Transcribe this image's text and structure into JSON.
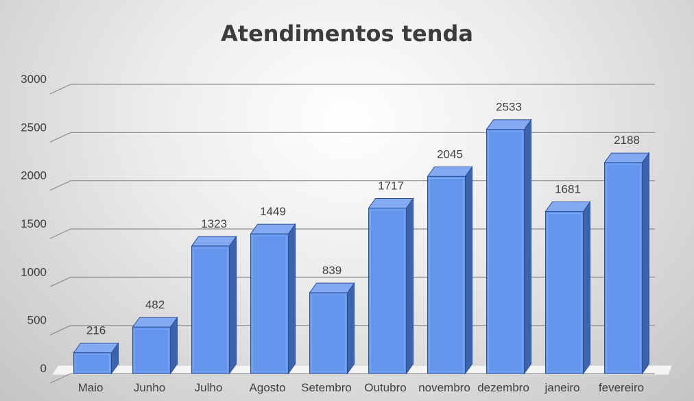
{
  "chart_data": {
    "type": "bar",
    "title": "Atendimentos tenda",
    "xlabel": "",
    "ylabel": "",
    "categories": [
      "Maio",
      "Junho",
      "Julho",
      "Agosto",
      "Setembro",
      "Outubro",
      "novembro",
      "dezembro",
      "janeiro",
      "fevereiro"
    ],
    "values": [
      216,
      482,
      1323,
      1449,
      839,
      1717,
      2045,
      2533,
      1681,
      2188
    ],
    "ylim": [
      0,
      3000
    ],
    "yticks": [
      0,
      500,
      1000,
      1500,
      2000,
      2500,
      3000
    ],
    "grid": true,
    "legend": "none",
    "colors": {
      "bar_front": "#6495ed",
      "bar_side": "#3d63ad",
      "bar_top": "#84aaf2",
      "gridline": "#8c8c8c",
      "text": "#404040",
      "title": "#3c3c3c"
    }
  }
}
